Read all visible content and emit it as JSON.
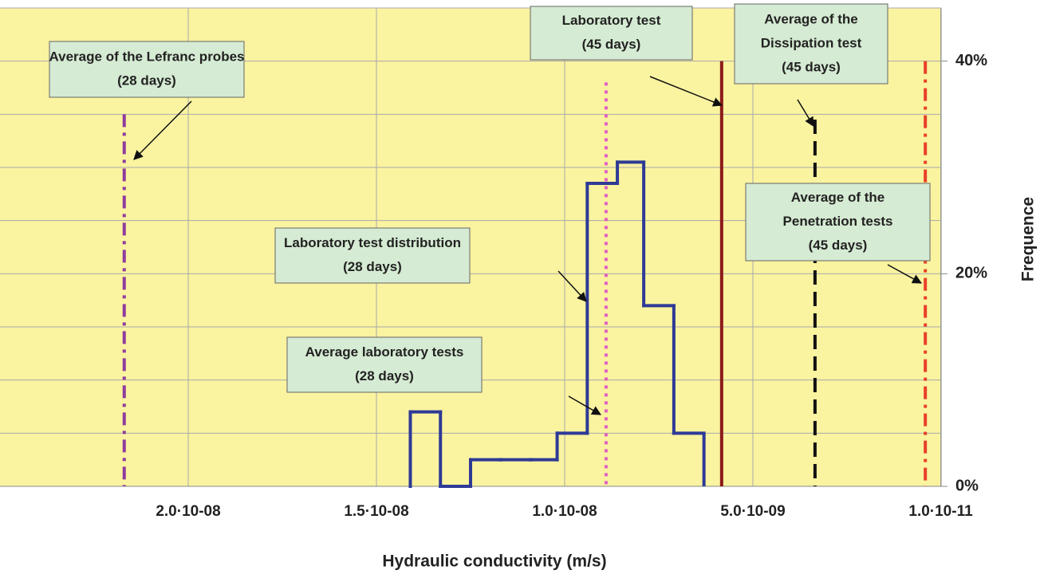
{
  "chart_data": {
    "type": "histogram",
    "xlabel": "Hydraulic conductivity (m/s)",
    "ylabel": "Frequence",
    "xlim": [
      2.5e-08,
      0
    ],
    "xticks": [
      {
        "value": 2e-08,
        "label": "2.0·10-08"
      },
      {
        "value": 1.5e-08,
        "label": "1.5·10-08"
      },
      {
        "value": 1e-08,
        "label": "1.0·10-08"
      },
      {
        "value": 5e-09,
        "label": "5.0·10-09"
      },
      {
        "value": 1e-11,
        "label": "1.0·10-11"
      }
    ],
    "ylim": [
      0,
      45
    ],
    "yticks": [
      {
        "value": 0,
        "label": "0%"
      },
      {
        "value": 20,
        "label": "20%"
      },
      {
        "value": 40,
        "label": "40%"
      }
    ],
    "minor_yticks": [
      5,
      10,
      15,
      25,
      30,
      35,
      45
    ],
    "grid": true,
    "background": "#faf3a0",
    "color": "#2e3a96",
    "bins": [
      1.41e-08,
      1.33e-08,
      1.25e-08,
      1.17e-08,
      1.09e-08,
      1.02e-08,
      9.4e-09,
      8.6e-09,
      7.9e-09,
      7.1e-09,
      6.3e-09
    ],
    "counts": [
      7,
      0,
      2.5,
      2.5,
      2.5,
      5,
      28.5,
      30.5,
      17,
      5
    ],
    "markers": [
      {
        "value": 2.17e-08,
        "top": 35,
        "color": "#8e3b9e",
        "style": "dashdot"
      },
      {
        "value": 8.9e-09,
        "top": 38,
        "color": "#e060c0",
        "style": "dotted"
      },
      {
        "value": 5.83e-09,
        "top": 40,
        "color": "#8b1a1a",
        "style": "solid"
      },
      {
        "value": 3.35e-09,
        "top": 34.5,
        "color": "#111111",
        "style": "dashed"
      },
      {
        "value": 4.2e-10,
        "top": 40,
        "color": "#e8402a",
        "style": "dashdot"
      }
    ],
    "annotations": [
      [
        "Average of the Lefranc probes",
        "(28 days)"
      ],
      [
        "Laboratory test",
        "(45 days)"
      ],
      [
        "Average of the",
        "Dissipation test",
        "(45 days)"
      ],
      [
        "Average of the",
        "Penetration tests",
        "(45 days)"
      ],
      [
        "Laboratory test distribution",
        "(28 days)"
      ],
      [
        "Average laboratory tests",
        "(28 days)"
      ]
    ]
  }
}
